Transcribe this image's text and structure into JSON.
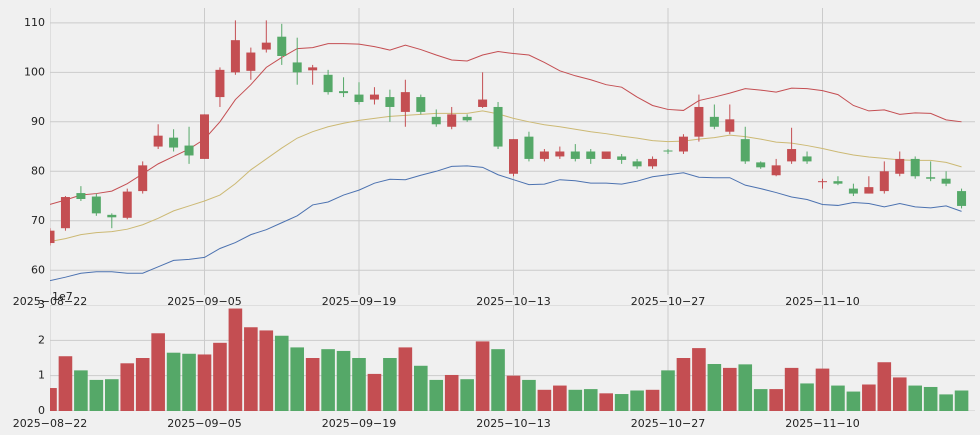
{
  "chart_data": [
    {
      "type": "candlestick",
      "categories": [
        "2025−08−22",
        null,
        null,
        null,
        null,
        null,
        null,
        null,
        null,
        null,
        "2025−09−05",
        null,
        null,
        null,
        null,
        null,
        null,
        null,
        null,
        null,
        "2025−09−19",
        null,
        null,
        null,
        null,
        null,
        null,
        null,
        null,
        null,
        "2025−10−13",
        null,
        null,
        null,
        null,
        null,
        null,
        null,
        null,
        null,
        "2025−10−27",
        null,
        null,
        null,
        null,
        null,
        null,
        null,
        null,
        null,
        "2025−11−10",
        null,
        null,
        null,
        null,
        null,
        null,
        null,
        null,
        null
      ],
      "open": [
        65.5,
        68.5,
        75.6,
        74.9,
        71.2,
        70.6,
        76,
        85,
        86.8,
        85.2,
        82.5,
        95,
        100,
        100.3,
        104.6,
        107.2,
        102,
        100.4,
        99.5,
        96.2,
        95.5,
        94.5,
        95,
        92,
        95,
        91,
        89,
        91,
        93,
        93,
        79.5,
        87,
        82.5,
        83,
        84,
        84,
        82.5,
        83,
        82,
        81,
        84.2,
        84,
        87,
        91,
        88,
        86.5,
        81.8,
        79.2,
        82,
        83,
        77.8,
        78,
        76.5,
        75.5,
        76,
        79.5,
        82.5,
        78.8,
        78.5,
        76
      ],
      "high": [
        68.5,
        75,
        77,
        75.5,
        71.5,
        76.5,
        82,
        89.5,
        88.5,
        89,
        91.5,
        101,
        110.5,
        105,
        110.5,
        109.8,
        107,
        101.5,
        100.5,
        99,
        98,
        97,
        96.5,
        98.5,
        95.5,
        92.5,
        93,
        91.5,
        100,
        94,
        86.5,
        88,
        84.5,
        85,
        85.5,
        84.5,
        84,
        83.5,
        82.5,
        83,
        84.5,
        87.5,
        95.5,
        93.5,
        93.5,
        89,
        82,
        82.5,
        88.8,
        84,
        78.5,
        79,
        77.5,
        79,
        82,
        84,
        83,
        82,
        80,
        76.5
      ],
      "low": [
        65,
        68,
        74,
        71,
        68.5,
        70.3,
        75.5,
        84.5,
        84,
        81.5,
        82.5,
        93,
        99.5,
        98.5,
        104,
        101.5,
        97.5,
        97.5,
        95.5,
        95,
        93.5,
        93.5,
        90,
        89,
        91.5,
        89,
        88.5,
        90,
        92.8,
        84.5,
        79,
        82,
        82,
        82.5,
        82,
        81.5,
        82.5,
        81.5,
        80.5,
        80.5,
        83.5,
        83.5,
        86,
        88.5,
        87.5,
        81.5,
        80.5,
        79,
        81.5,
        81.5,
        76.5,
        77.2,
        75,
        75.5,
        75.5,
        79,
        78.5,
        78,
        77,
        72.5
      ],
      "close": [
        68,
        74.8,
        74.4,
        71.5,
        70.7,
        75.9,
        81.2,
        87.2,
        84.8,
        83.2,
        91.5,
        100.5,
        106.5,
        104,
        106,
        103.3,
        100,
        101,
        96,
        95.8,
        94,
        95.5,
        93,
        96,
        92,
        89.5,
        91.5,
        90.3,
        94.5,
        85,
        86.5,
        82.5,
        84,
        84,
        82.5,
        82.5,
        84,
        82.3,
        81,
        82.5,
        84,
        87,
        93,
        89,
        90.5,
        82,
        80.8,
        81.2,
        84.5,
        82,
        78,
        77.5,
        75.5,
        76.8,
        80,
        82.5,
        79,
        78.5,
        77.5,
        73
      ],
      "up_color": "#c44e52",
      "down_color": "#55a868",
      "series": [
        {
          "name": "upper",
          "color": "#c44e52",
          "values": [
            73.3,
            74.2,
            75.2,
            75.5,
            76,
            77.5,
            79.5,
            81.5,
            83,
            84.5,
            86.5,
            90,
            94.5,
            97.5,
            101,
            103,
            104.8,
            105,
            105.8,
            105.8,
            105.7,
            105.2,
            104.5,
            105.5,
            104.6,
            103.5,
            102.5,
            102.3,
            103.5,
            104.2,
            103.8,
            103.5,
            102,
            100.3,
            99.3,
            98.5,
            97.5,
            97,
            95,
            93.3,
            92.5,
            92.3,
            94.3,
            95,
            95.8,
            96.7,
            96.4,
            96,
            96.8,
            96.7,
            96.3,
            95.5,
            93.3,
            92.2,
            92.4,
            91.5,
            91.8,
            91.7,
            90.4,
            90
          ]
        },
        {
          "name": "middle",
          "color": "#ccb974",
          "values": [
            65.8,
            66.4,
            67.2,
            67.6,
            67.8,
            68.3,
            69.2,
            70.5,
            72,
            73,
            74,
            75.2,
            77.5,
            80.3,
            82.5,
            84.7,
            86.7,
            88,
            89,
            89.7,
            90.3,
            90.7,
            91.1,
            91.3,
            91.5,
            91.7,
            91.7,
            91.7,
            92.2,
            91.6,
            90.7,
            90,
            89.4,
            89,
            88.5,
            88,
            87.6,
            87.1,
            86.7,
            86.2,
            86,
            86.1,
            86.5,
            86.8,
            87.3,
            87,
            86.5,
            85.9,
            85.7,
            85.2,
            84.6,
            83.9,
            83.3,
            82.9,
            82.6,
            82.3,
            82.2,
            82.2,
            81.8,
            80.9
          ]
        },
        {
          "name": "lower",
          "color": "#4c72b0",
          "values": [
            57.9,
            58.6,
            59.4,
            59.7,
            59.7,
            59.4,
            59.4,
            60.7,
            62,
            62.2,
            62.6,
            64.4,
            65.6,
            67.2,
            68.2,
            69.6,
            71,
            73.2,
            73.8,
            75.2,
            76.2,
            77.6,
            78.4,
            78.3,
            79.2,
            80,
            81,
            81.1,
            80.8,
            79.3,
            78.3,
            77.3,
            77.4,
            78.3,
            78.1,
            77.6,
            77.6,
            77.4,
            78,
            78.9,
            79.3,
            79.7,
            78.8,
            78.7,
            78.7,
            77.2,
            76.5,
            75.7,
            74.8,
            74.3,
            73.3,
            73.1,
            73.7,
            73.5,
            72.8,
            73.5,
            72.8,
            72.6,
            73,
            71.9
          ]
        }
      ],
      "ylim": [
        55,
        113
      ],
      "yticks": [
        60,
        70,
        80,
        90,
        100,
        110
      ],
      "grid": true
    },
    {
      "type": "bar",
      "categories": [
        "2025−08−22",
        null,
        null,
        null,
        null,
        null,
        null,
        null,
        null,
        null,
        "2025−09−05",
        null,
        null,
        null,
        null,
        null,
        null,
        null,
        null,
        null,
        "2025−09−19",
        null,
        null,
        null,
        null,
        null,
        null,
        null,
        null,
        null,
        "2025−10−13",
        null,
        null,
        null,
        null,
        null,
        null,
        null,
        null,
        null,
        "2025−10−27",
        null,
        null,
        null,
        null,
        null,
        null,
        null,
        null,
        null,
        "2025−11−10",
        null,
        null,
        null,
        null,
        null,
        null,
        null,
        null,
        null
      ],
      "values": [
        0.65,
        1.55,
        1.15,
        0.88,
        0.9,
        1.35,
        1.5,
        2.2,
        1.65,
        1.62,
        1.6,
        1.93,
        2.9,
        2.37,
        2.28,
        2.13,
        1.8,
        1.5,
        1.75,
        1.7,
        1.5,
        1.05,
        1.5,
        1.8,
        1.28,
        0.88,
        1.02,
        0.9,
        1.97,
        1.75,
        1.0,
        0.88,
        0.6,
        0.72,
        0.6,
        0.62,
        0.5,
        0.48,
        0.58,
        0.6,
        1.15,
        1.5,
        1.78,
        1.33,
        1.22,
        1.32,
        0.62,
        0.62,
        1.22,
        0.78,
        1.2,
        0.72,
        0.55,
        0.75,
        1.38,
        0.95,
        0.72,
        0.68,
        0.47,
        0.58
      ],
      "offset_label": "1e7",
      "ylim": [
        0,
        3
      ],
      "yticks": [
        0,
        1,
        2,
        3
      ],
      "grid": true
    }
  ]
}
